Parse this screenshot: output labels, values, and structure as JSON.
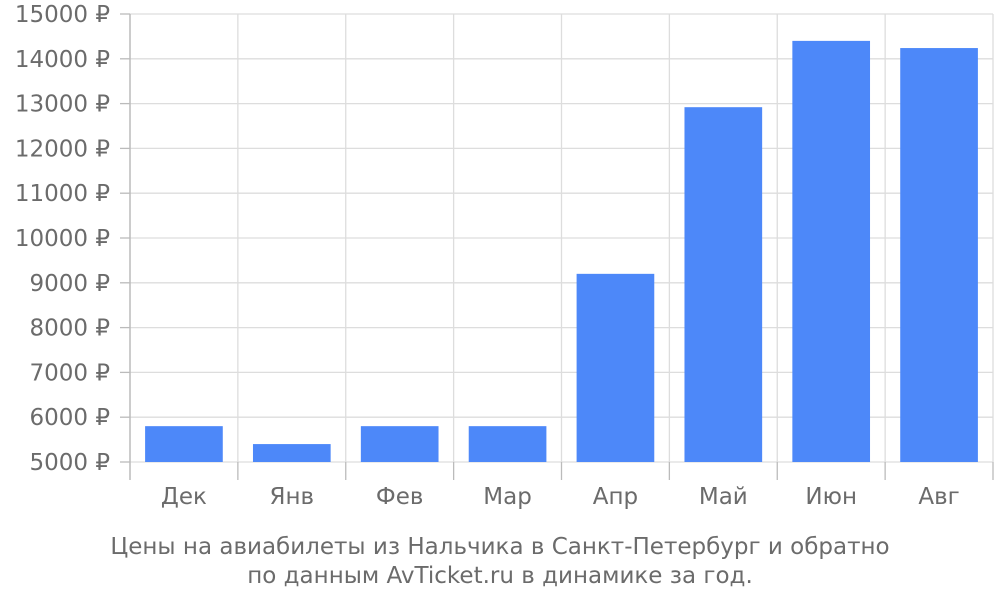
{
  "chart_data": {
    "type": "bar",
    "categories": [
      "Дек",
      "Янв",
      "Фев",
      "Мар",
      "Апр",
      "Май",
      "Июн",
      "Авг"
    ],
    "values": [
      5800,
      5400,
      5800,
      5800,
      9200,
      12920,
      14400,
      14240
    ],
    "ylim": [
      5000,
      15000
    ],
    "yticks": [
      5000,
      6000,
      7000,
      8000,
      9000,
      10000,
      11000,
      12000,
      13000,
      14000,
      15000
    ],
    "ytick_suffix": " ₽",
    "grid": true,
    "legend": "none",
    "bar_color": "#4d88f9",
    "grid_color": "#dddddd",
    "axis_color": "#bbbbbb",
    "caption": [
      "Цены на авиабилеты из Нальчика в Санкт-Петербург и обратно",
      "по данным AvTicket.ru в динамике за год."
    ]
  }
}
